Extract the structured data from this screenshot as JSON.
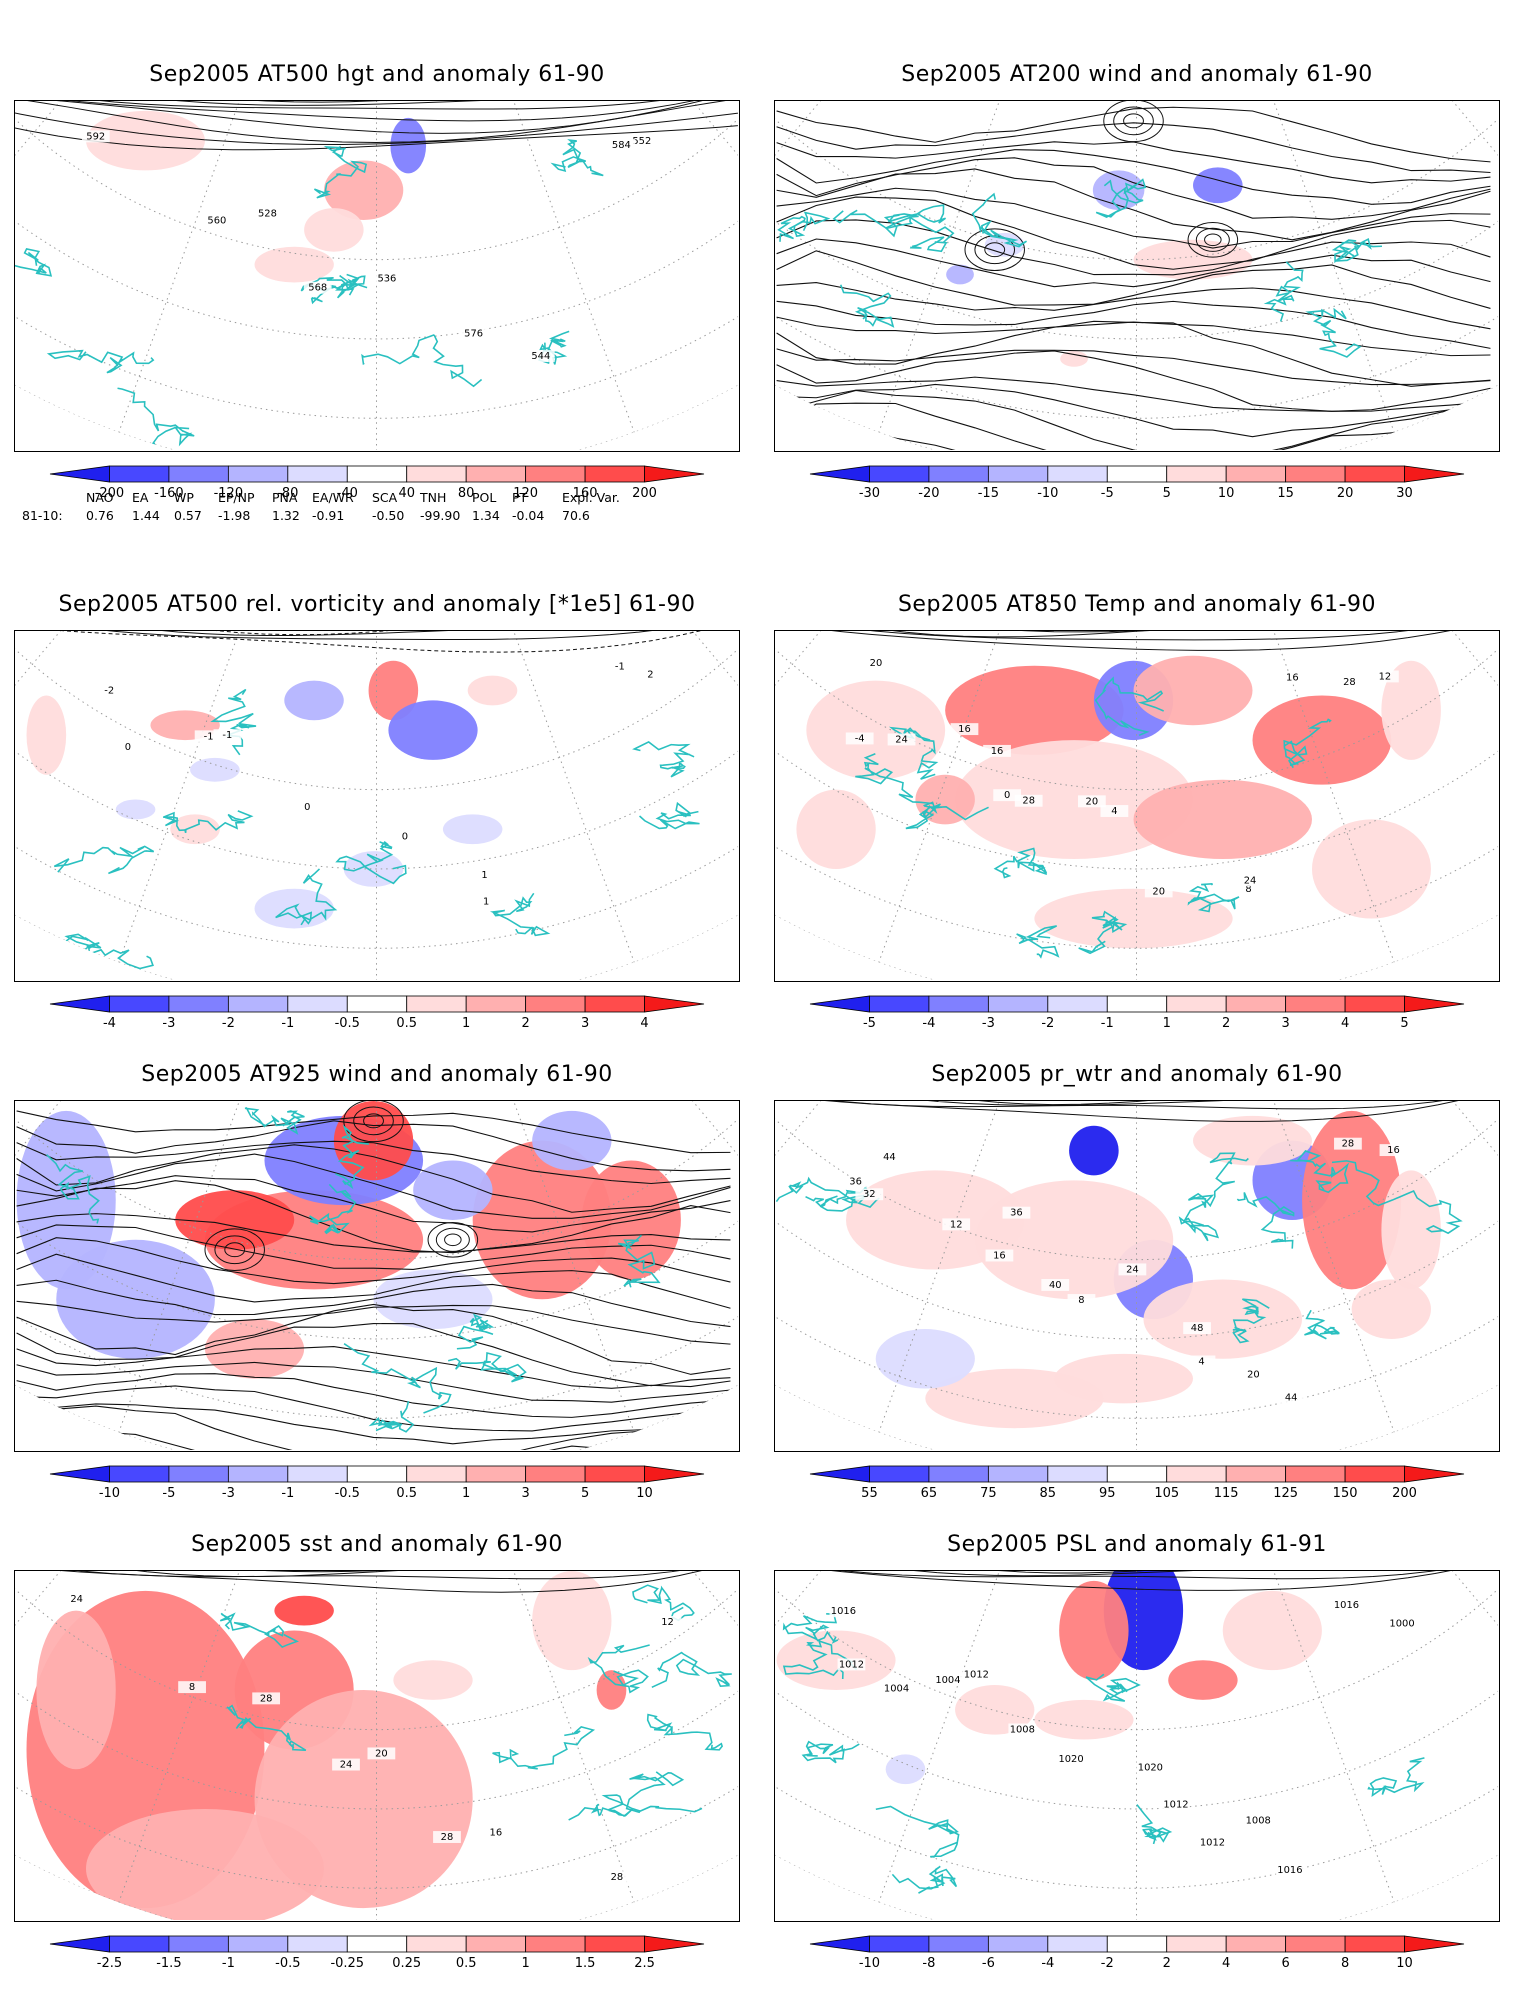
{
  "panels": [
    {
      "id": "hgt500",
      "title": "Sep2005 AT500 hgt and anomaly 61-90",
      "colorbar": [
        "-200",
        "-160",
        "-120",
        "-80",
        "-40",
        "40",
        "80",
        "120",
        "160",
        "200"
      ],
      "contour_labels": [
        "592",
        "528",
        "536",
        "544",
        "552",
        "560",
        "568",
        "576",
        "584"
      ],
      "style": "contour"
    },
    {
      "id": "wind200",
      "title": "Sep2005 AT200 wind and anomaly 61-90",
      "colorbar": [
        "-30",
        "-20",
        "-15",
        "-10",
        "-5",
        "5",
        "10",
        "15",
        "20",
        "30"
      ],
      "contour_labels": [],
      "style": "streamline"
    },
    {
      "id": "vort500",
      "title": "Sep2005 AT500 rel. vorticity and anomaly [*1e5] 61-90",
      "colorbar": [
        "-4",
        "-3",
        "-2",
        "-1",
        "-0.5",
        "0.5",
        "1",
        "2",
        "3",
        "4"
      ],
      "contour_labels": [
        "-2",
        "-1",
        "0",
        "1",
        "2",
        "-1",
        "0",
        "1",
        "-1",
        "0"
      ],
      "style": "contour"
    },
    {
      "id": "temp850",
      "title": "Sep2005 AT850 Temp and anomaly 61-90",
      "colorbar": [
        "-5",
        "-4",
        "-3",
        "-2",
        "-1",
        "1",
        "2",
        "3",
        "4",
        "5"
      ],
      "contour_labels": [
        "20",
        "16",
        "4",
        "8",
        "12",
        "16",
        "20",
        "24",
        "28",
        "24",
        "28",
        "20",
        "16",
        "-4",
        "0"
      ],
      "style": "contour"
    },
    {
      "id": "wind925",
      "title": "Sep2005 AT925 wind and anomaly 61-90",
      "colorbar": [
        "-10",
        "-5",
        "-3",
        "-1",
        "-0.5",
        "0.5",
        "1",
        "3",
        "5",
        "10"
      ],
      "contour_labels": [],
      "style": "streamline"
    },
    {
      "id": "prwtr",
      "title": "Sep2005 pr_wtr and anomaly 61-90",
      "colorbar": [
        "55",
        "65",
        "75",
        "85",
        "95",
        "105",
        "115",
        "125",
        "150",
        "200"
      ],
      "contour_labels": [
        "44",
        "36",
        "24",
        "20",
        "16",
        "12",
        "8",
        "4",
        "28",
        "32",
        "40",
        "48",
        "44",
        "36",
        "16"
      ],
      "style": "contour"
    },
    {
      "id": "sst",
      "title": "Sep2005 sst and anomaly 61-90",
      "colorbar": [
        "-2.5",
        "-1.5",
        "-1",
        "-0.5",
        "-0.25",
        "0.25",
        "0.5",
        "1",
        "1.5",
        "2.5"
      ],
      "contour_labels": [
        "24",
        "28",
        "20",
        "16",
        "12",
        "8",
        "24",
        "28",
        "28"
      ],
      "style": "contour"
    },
    {
      "id": "psl",
      "title": "Sep2005 PSL and anomaly 61-91",
      "colorbar": [
        "-10",
        "-8",
        "-6",
        "-4",
        "-2",
        "2",
        "4",
        "6",
        "8",
        "10"
      ],
      "contour_labels": [
        "1016",
        "1012",
        "1020",
        "1008",
        "1000",
        "1004",
        "1020",
        "1012",
        "1016",
        "1004",
        "1008",
        "1012",
        "1016",
        "1012"
      ],
      "style": "contour"
    }
  ],
  "teleconnections": {
    "headers": [
      "NAO",
      "EA",
      "WP",
      "EP/NP",
      "PNA",
      "EA/WR",
      "SCA",
      "TNH",
      "POL",
      "PT",
      "Expl. Var."
    ],
    "row_label": "81-10:",
    "values": [
      "0.76",
      "1.44",
      "0.57",
      "-1.98",
      "1.32",
      "-0.91",
      "-0.50",
      "-99.90",
      "1.34",
      "-0.04",
      "70.6"
    ]
  },
  "colors": {
    "blue_scale": [
      "#2020ee",
      "#4848ff",
      "#8080ff",
      "#b4b4ff",
      "#dcdcff"
    ],
    "red_scale": [
      "#ffdcdc",
      "#ffb0b0",
      "#ff8080",
      "#ff4c4c",
      "#f41a1a"
    ],
    "coast": "#2ac0c0",
    "contour": "#000000"
  }
}
